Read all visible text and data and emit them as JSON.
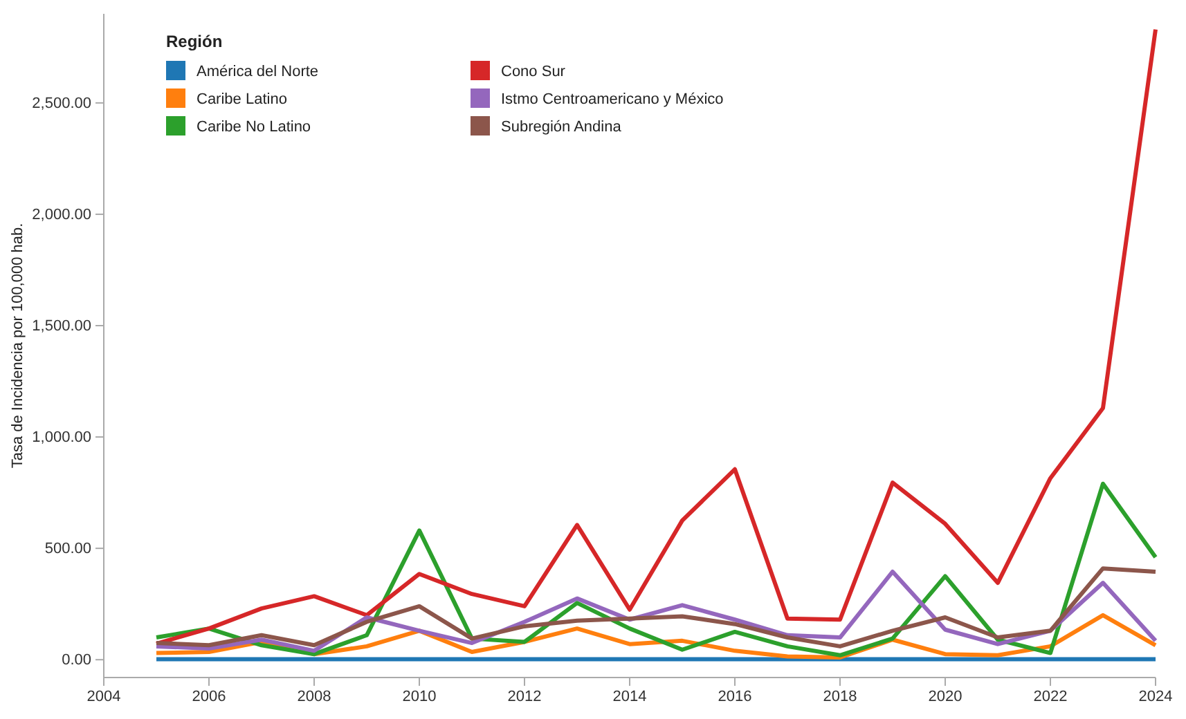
{
  "chart_data": {
    "type": "line",
    "ylabel": "Tasa de Incidencia por 100,000 hab.",
    "legend_title": "Región",
    "legend": "top left",
    "grid": false,
    "x": [
      2005,
      2006,
      2007,
      2008,
      2009,
      2010,
      2011,
      2012,
      2013,
      2014,
      2015,
      2016,
      2017,
      2018,
      2019,
      2020,
      2021,
      2022,
      2023,
      2024
    ],
    "xlim": [
      2004,
      2024
    ],
    "xticks": [
      2004,
      2006,
      2008,
      2010,
      2012,
      2014,
      2016,
      2018,
      2020,
      2022,
      2024
    ],
    "ylim": [
      -80,
      2900
    ],
    "yticks": [
      {
        "value": 0,
        "label": "0.00"
      },
      {
        "value": 500,
        "label": "500.00"
      },
      {
        "value": 1000,
        "label": "1,000.00"
      },
      {
        "value": 1500,
        "label": "1,500.00"
      },
      {
        "value": 2000,
        "label": "2,000.00"
      },
      {
        "value": 2500,
        "label": "2,500.00"
      }
    ],
    "series": [
      {
        "name": "América del Norte",
        "color": "#1f77b4",
        "values": [
          2,
          2,
          2,
          2,
          2,
          2,
          2,
          2,
          2,
          2,
          2,
          2,
          2,
          2,
          2,
          2,
          2,
          2,
          2,
          2
        ]
      },
      {
        "name": "Caribe Latino",
        "color": "#ff7f0e",
        "values": [
          30,
          35,
          80,
          25,
          60,
          130,
          35,
          80,
          140,
          70,
          85,
          40,
          15,
          10,
          90,
          25,
          20,
          60,
          200,
          65
        ]
      },
      {
        "name": "Caribe No Latino",
        "color": "#2ca02c",
        "values": [
          100,
          140,
          65,
          25,
          110,
          580,
          95,
          80,
          255,
          140,
          45,
          125,
          60,
          20,
          95,
          375,
          90,
          30,
          790,
          460
        ]
      },
      {
        "name": "Cono Sur",
        "color": "#d62728",
        "values": [
          72,
          140,
          230,
          285,
          200,
          385,
          295,
          240,
          605,
          225,
          625,
          855,
          185,
          180,
          795,
          610,
          345,
          815,
          1130,
          2830
        ]
      },
      {
        "name": "Istmo Centroamericano y México",
        "color": "#9467bd",
        "values": [
          60,
          50,
          90,
          40,
          190,
          130,
          75,
          170,
          275,
          180,
          245,
          180,
          110,
          100,
          395,
          135,
          70,
          130,
          345,
          85
        ]
      },
      {
        "name": "Subregión Andina",
        "color": "#8c564b",
        "values": [
          75,
          65,
          110,
          65,
          170,
          240,
          95,
          150,
          175,
          185,
          195,
          160,
          100,
          60,
          130,
          190,
          100,
          130,
          410,
          395
        ]
      }
    ]
  }
}
